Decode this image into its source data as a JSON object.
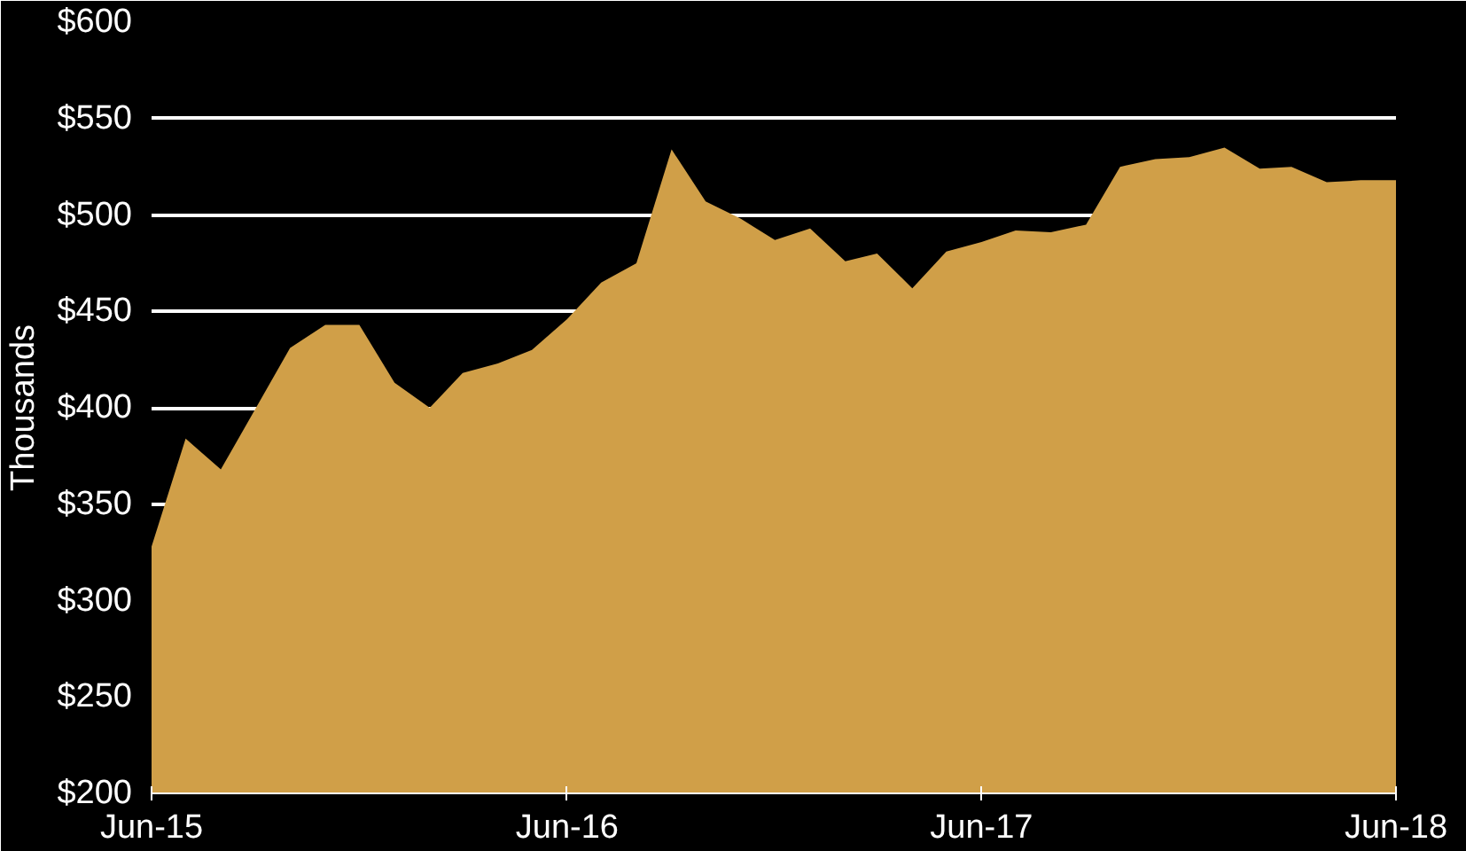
{
  "chart_data": {
    "type": "area",
    "ylabel": "Thousands",
    "x": [
      "2015-06",
      "2015-07",
      "2015-08",
      "2015-09",
      "2015-10",
      "2015-11",
      "2015-12",
      "2016-01",
      "2016-02",
      "2016-03",
      "2016-04",
      "2016-05",
      "2016-06",
      "2016-07",
      "2016-08",
      "2016-09",
      "2016-10",
      "2016-11",
      "2016-12",
      "2017-01",
      "2017-02",
      "2017-03",
      "2017-04",
      "2017-05",
      "2017-06",
      "2017-07",
      "2017-08",
      "2017-09",
      "2017-10",
      "2017-11",
      "2017-12",
      "2018-01",
      "2018-02",
      "2018-03",
      "2018-04",
      "2018-05",
      "2018-06"
    ],
    "series": [
      {
        "color": "#d09f48",
        "values": [
          328,
          384,
          368,
          400,
          431,
          443,
          443,
          413,
          400,
          418,
          423,
          430,
          446,
          465,
          475,
          534,
          507,
          498,
          487,
          493,
          476,
          480,
          462,
          481,
          486,
          492,
          491,
          495,
          525,
          529,
          530,
          535,
          524,
          525,
          517,
          518,
          518
        ]
      }
    ],
    "xlim": [
      "2015-06",
      "2018-06"
    ],
    "xticks": [
      {
        "value": "2015-06",
        "label": "Jun-15"
      },
      {
        "value": "2016-06",
        "label": "Jun-16"
      },
      {
        "value": "2017-06",
        "label": "Jun-17"
      },
      {
        "value": "2018-06",
        "label": "Jun-18"
      }
    ],
    "ylim": [
      200,
      600
    ],
    "yticks": [
      {
        "value": 200,
        "label": "$200"
      },
      {
        "value": 250,
        "label": "$250"
      },
      {
        "value": 300,
        "label": "$300"
      },
      {
        "value": 350,
        "label": "$350"
      },
      {
        "value": 400,
        "label": "$400"
      },
      {
        "value": 450,
        "label": "$450"
      },
      {
        "value": 500,
        "label": "$500"
      },
      {
        "value": 550,
        "label": "$550"
      },
      {
        "value": 600,
        "label": "$600"
      }
    ],
    "grid": "y"
  }
}
